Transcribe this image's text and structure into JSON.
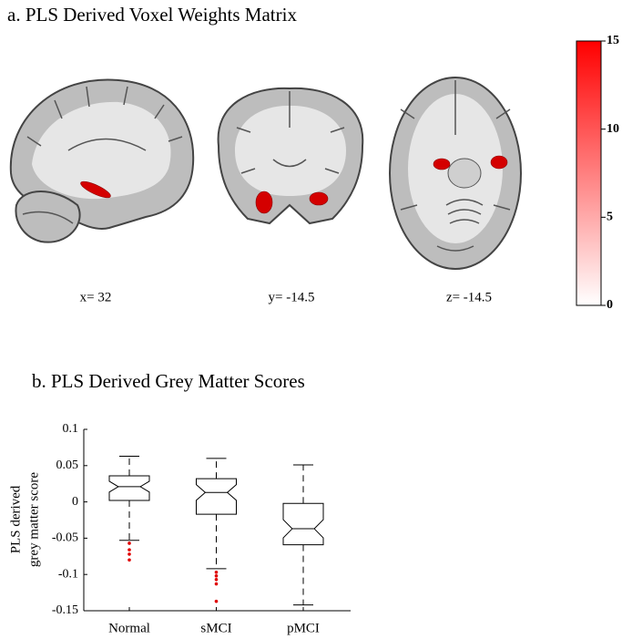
{
  "panel_a": {
    "title": "a. PLS Derived Voxel Weights Matrix",
    "slices": [
      "x= 32",
      "y= -14.5",
      "z= -14.5"
    ]
  },
  "chart_data": [
    {
      "type": "colorbar",
      "ylim": [
        0,
        15
      ],
      "yticks": [
        0,
        5,
        10,
        15
      ],
      "colors": [
        "#ffffff",
        "#ff0000"
      ]
    },
    {
      "type": "box",
      "title": "b. PLS Derived Grey Matter Scores",
      "ylabel": [
        "PLS derived",
        "grey matter score"
      ],
      "categories": [
        "Normal",
        "sMCI",
        "pMCI"
      ],
      "boxes": [
        {
          "whisker_low": -0.053,
          "q1": 0.002,
          "median": 0.021,
          "q3": 0.036,
          "whisker_high": 0.063,
          "outliers": [
            -0.057,
            -0.066,
            -0.072,
            -0.08
          ]
        },
        {
          "whisker_low": -0.092,
          "q1": -0.017,
          "median": 0.013,
          "q3": 0.032,
          "whisker_high": 0.06,
          "outliers": [
            -0.097,
            -0.102,
            -0.107,
            -0.113,
            -0.137
          ]
        },
        {
          "whisker_low": -0.142,
          "q1": -0.059,
          "median": -0.037,
          "q3": -0.002,
          "whisker_high": 0.051,
          "outliers": []
        }
      ],
      "color": "#000000",
      "outlier_color": "#e00000",
      "ylim": [
        -0.15,
        0.1
      ],
      "yticks": [
        -0.15,
        -0.1,
        -0.05,
        0,
        0.05,
        0.1
      ]
    }
  ]
}
